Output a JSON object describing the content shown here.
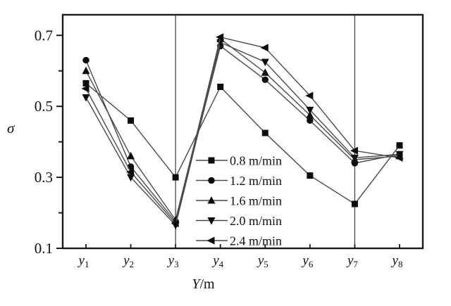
{
  "figure": {
    "background": "#ffffff",
    "axis_color": "#1a1a1a",
    "line_color": "#4a4a4a",
    "marker_color": "#0d0d0d",
    "ylabel": "σ",
    "xlabel": {
      "main": "Y",
      "unit": "/m"
    }
  },
  "chart_data": {
    "type": "line",
    "title": "",
    "ylabel": "σ",
    "xlabel": "Y/m",
    "categories": [
      {
        "base": "y",
        "sub": "1"
      },
      {
        "base": "y",
        "sub": "2"
      },
      {
        "base": "y",
        "sub": "3"
      },
      {
        "base": "y",
        "sub": "4"
      },
      {
        "base": "y",
        "sub": "5"
      },
      {
        "base": "y",
        "sub": "6"
      },
      {
        "base": "y",
        "sub": "7"
      },
      {
        "base": "y",
        "sub": "8"
      }
    ],
    "ylim": [
      0.1,
      0.758
    ],
    "yticks_major": [
      0.7,
      0.5,
      0.3,
      0.1
    ],
    "ytick_labels": [
      "0.7",
      "0.5",
      "0.3",
      "0.1"
    ],
    "yticks_minor": [
      0.6,
      0.4,
      0.2
    ],
    "grid": "vertical-reference-lines-at-y3-and-y7",
    "reference_line_category_indices": [
      2,
      6
    ],
    "legend_position": "inside-bottom-center",
    "series": [
      {
        "name": "0.8 m/min",
        "marker": "square",
        "values": [
          0.565,
          0.46,
          0.3,
          0.555,
          0.425,
          0.305,
          0.225,
          0.39
        ]
      },
      {
        "name": "1.2 m/min",
        "marker": "circle",
        "values": [
          0.63,
          0.33,
          0.175,
          0.67,
          0.575,
          0.46,
          0.34,
          0.365
        ]
      },
      {
        "name": "1.6 m/min",
        "marker": "triangle-up",
        "values": [
          0.6,
          0.36,
          0.18,
          0.69,
          0.595,
          0.475,
          0.35,
          0.36
        ]
      },
      {
        "name": "2.0 m/min",
        "marker": "triangle-down",
        "values": [
          0.525,
          0.3,
          0.165,
          0.68,
          0.625,
          0.49,
          0.355,
          0.365
        ]
      },
      {
        "name": "2.4 m/min",
        "marker": "triangle-left",
        "values": [
          0.55,
          0.315,
          0.17,
          0.695,
          0.665,
          0.53,
          0.375,
          0.355
        ]
      }
    ]
  }
}
